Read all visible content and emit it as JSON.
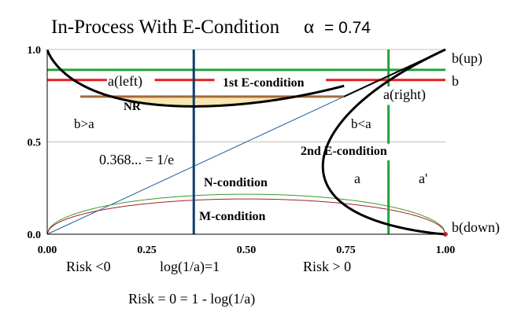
{
  "chart_data": {
    "type": "line",
    "title": {
      "main": "In-Process With E-Condition",
      "alpha_symbol": "α",
      "alpha_text": "= 0.74"
    },
    "alpha": 0.74,
    "xlim": [
      0,
      1
    ],
    "ylim": [
      0,
      1
    ],
    "x_ticks": [
      {
        "value": 0,
        "label": "0.00"
      },
      {
        "value": 0.25,
        "label": "0.25"
      },
      {
        "value": 0.5,
        "label": "0.50"
      },
      {
        "value": 0.75,
        "label": "0.75"
      },
      {
        "value": 1,
        "label": "1.00"
      }
    ],
    "y_ticks": [
      {
        "value": 0,
        "label": "0.0"
      },
      {
        "value": 0.5,
        "label": "0.5"
      },
      {
        "value": 1,
        "label": "1.0"
      }
    ],
    "grid": {
      "horizontal": [
        0.5,
        1.0
      ],
      "color": "#c0c0c0"
    },
    "colors": {
      "black_curve": "#000000",
      "green": "#22a33a",
      "red": "#e02020",
      "navy": "#0b3d6e",
      "brown": "#a36a3a",
      "nr_fill": "#f6e6b0",
      "thin_green": "#3a9a2a",
      "thin_red": "#a0202a",
      "thin_blue": "#1f5f9f",
      "endpoint": "#c03030"
    },
    "reference_lines": {
      "b_up": 0.89,
      "b": 0.835,
      "nr_level": 0.745,
      "x_1_over_e": 0.368,
      "x_a_right": 0.857
    },
    "series": [
      {
        "name": "In-Process",
        "role": "black-curve"
      },
      {
        "name": "N-condition",
        "role": "diagonal"
      },
      {
        "name": "M-condition",
        "role": "arcs"
      }
    ],
    "labels": {
      "b_up": "b(up)",
      "b": "b",
      "b_down": "b(down)",
      "a_left": "a(left)",
      "first_e": "1st E-condition",
      "a_right": "a(right)",
      "nr": "NR",
      "b_gt_a": "b>a",
      "b_lt_a": "b<a",
      "second_e": "2nd E-condition",
      "inv_e": "0.368... = 1/e",
      "n_condition": "N-condition",
      "a": "a",
      "a_prime": "a'",
      "m_condition": "M-condition"
    },
    "bottom_notes": {
      "risk_neg": "Risk <0",
      "log_eq": "log(1/a)=1",
      "risk_pos": "Risk > 0",
      "risk_zero": "Risk = 0 = 1 - log(1/a)"
    }
  }
}
